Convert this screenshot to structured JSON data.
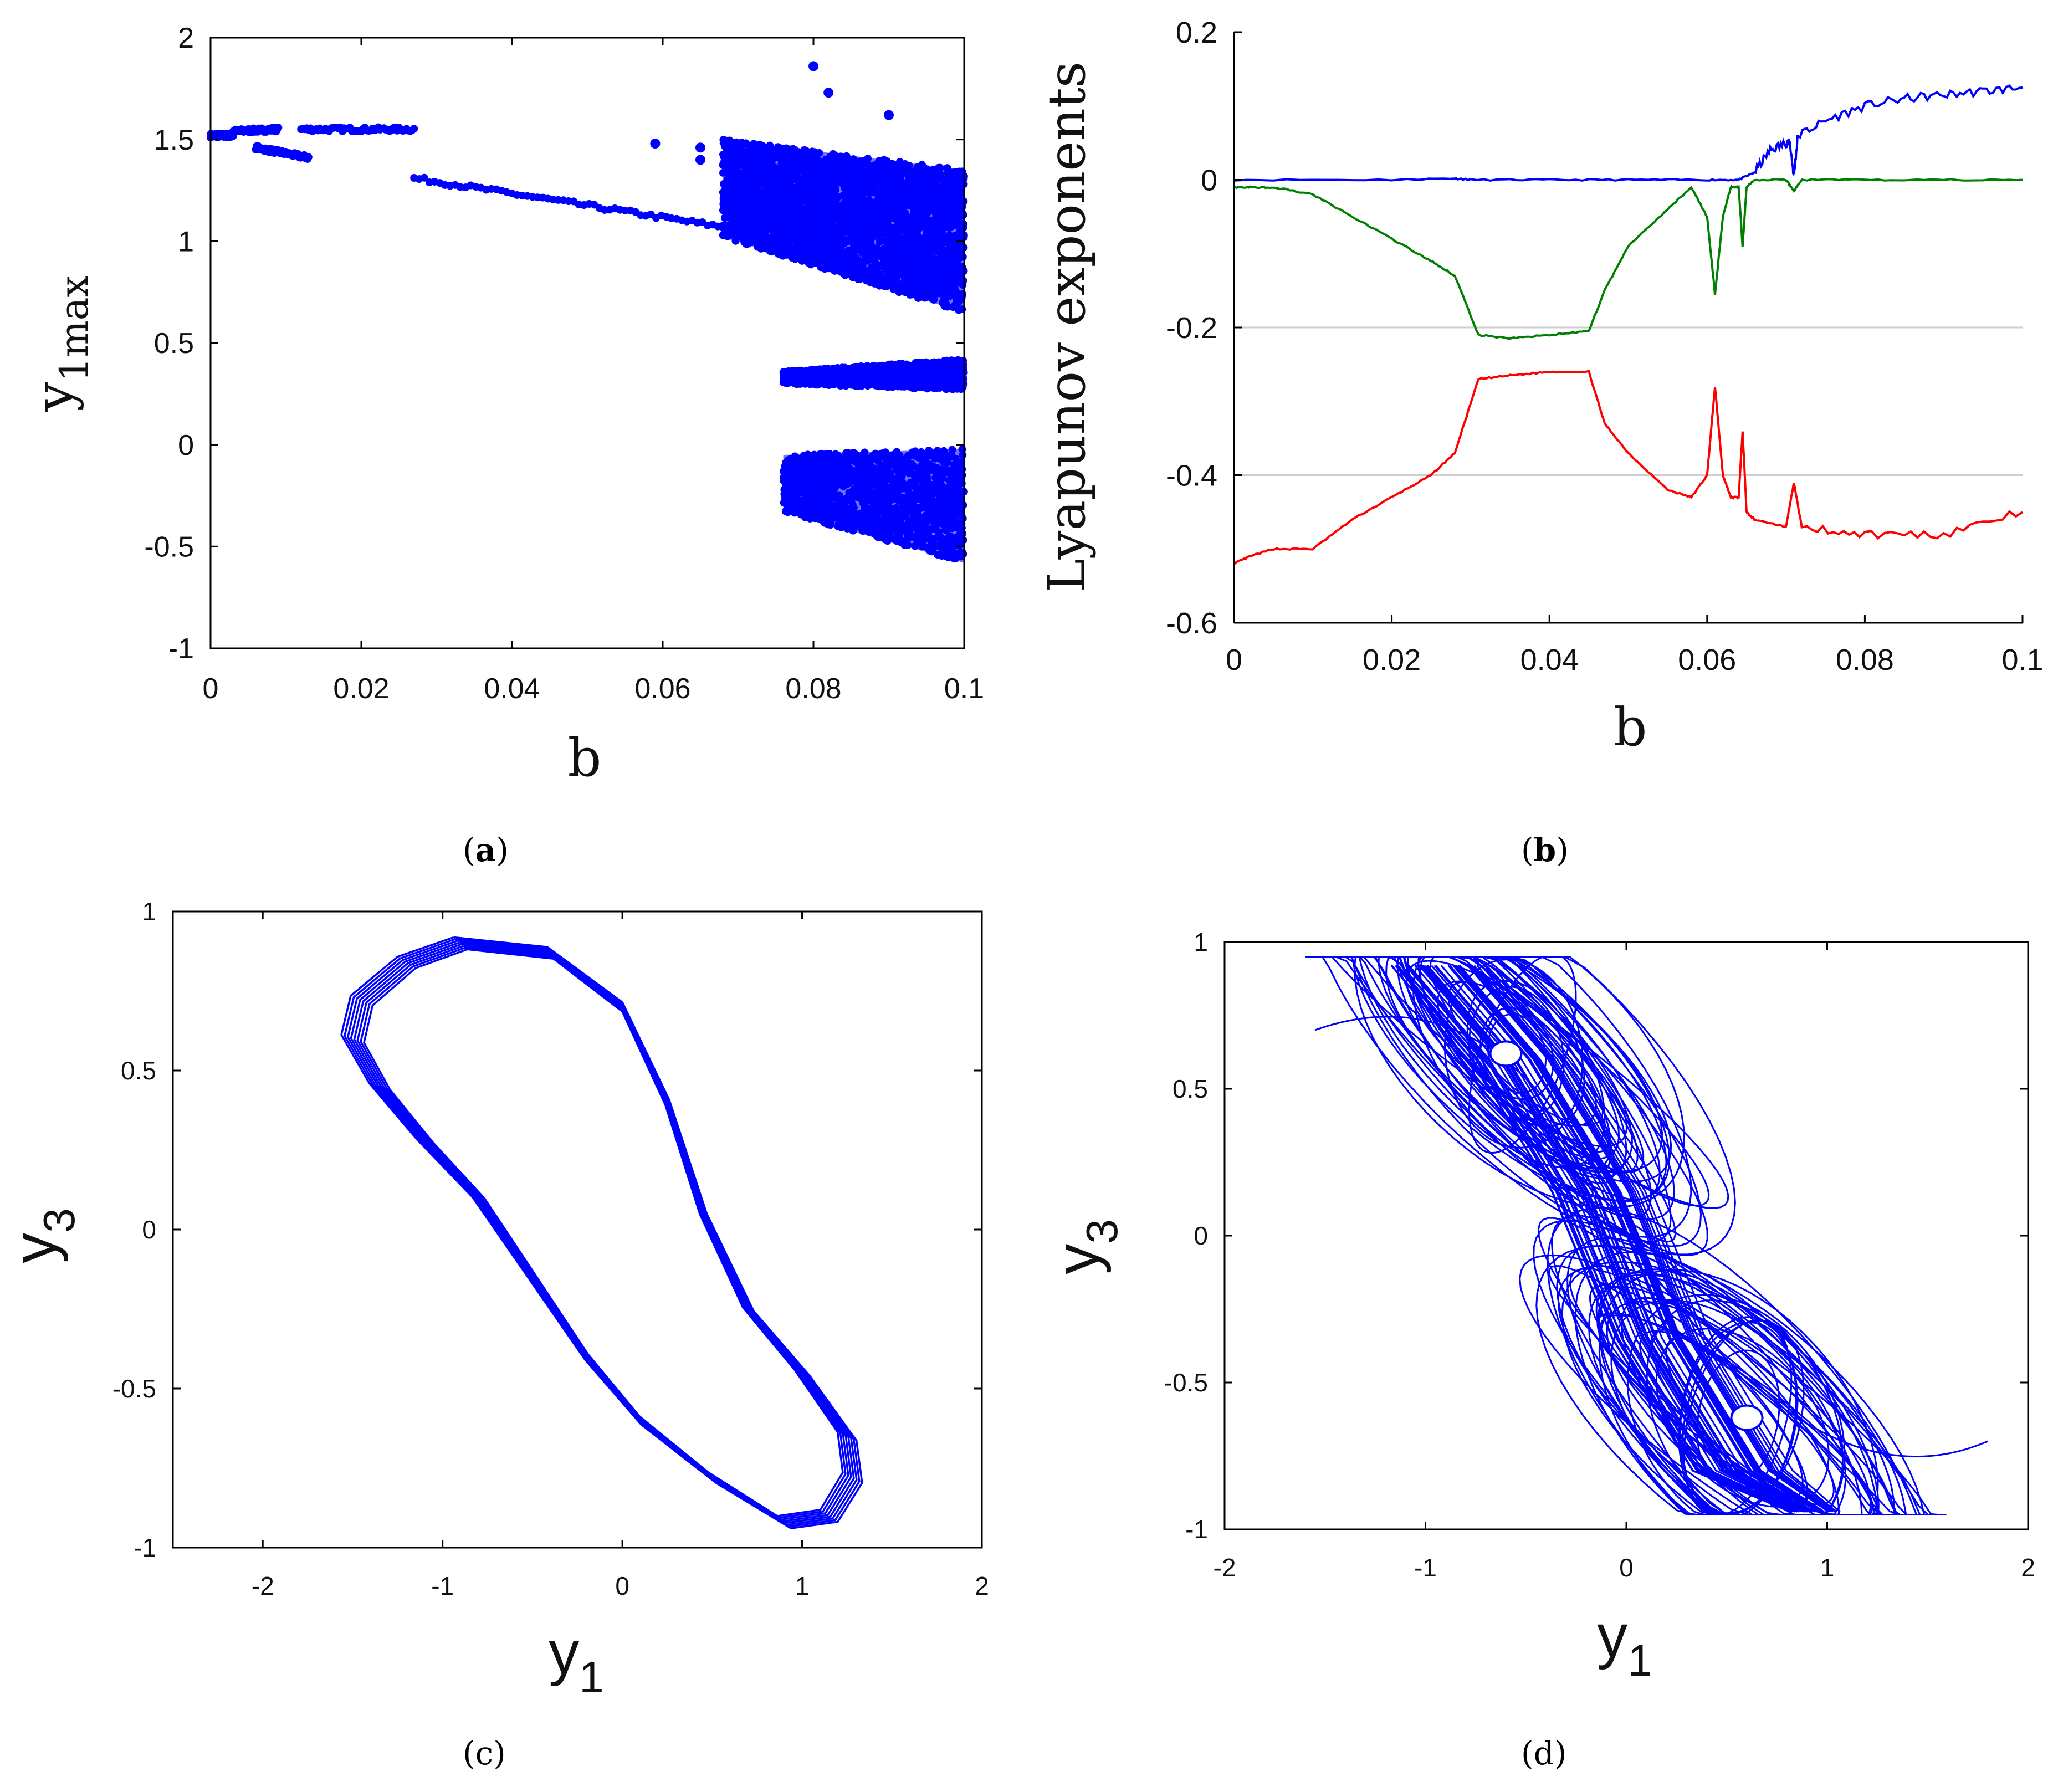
{
  "captions": {
    "a": {
      "open": "(",
      "letter": "a",
      "close": ")"
    },
    "b": {
      "open": "(",
      "letter": "b",
      "close": ")"
    },
    "c": {
      "open": "(",
      "letter": "c",
      "close": ")"
    },
    "d": {
      "open": "(",
      "letter": "d",
      "close": ")"
    }
  },
  "chart_data": [
    {
      "id": "a",
      "type": "scatter",
      "xlabel": "b",
      "ylabel": "y",
      "ylabel_sub": "1max",
      "xlim": [
        0,
        0.1
      ],
      "ylim": [
        -1,
        2
      ],
      "xticks": [
        "0",
        "0.02",
        "0.04",
        "0.06",
        "0.08",
        "0.1"
      ],
      "yticks": [
        "-1",
        "-0.5",
        "0",
        "0.5",
        "1",
        "1.5",
        "2"
      ],
      "color": "#0000ff",
      "segments": [
        {
          "x": [
            0.0,
            0.003
          ],
          "y": [
            1.52,
            1.52
          ]
        },
        {
          "x": [
            0.003,
            0.009
          ],
          "y": [
            1.54,
            1.55
          ]
        },
        {
          "x": [
            0.006,
            0.013
          ],
          "y": [
            1.46,
            1.41
          ]
        },
        {
          "x": [
            0.012,
            0.027
          ],
          "y": [
            1.55,
            1.55
          ]
        },
        {
          "x": [
            0.027,
            0.068
          ],
          "y": [
            1.31,
            1.07
          ]
        }
      ],
      "isolated_points": [
        {
          "x": 0.059,
          "y": 1.48
        },
        {
          "x": 0.065,
          "y": 1.46
        },
        {
          "x": 0.065,
          "y": 1.4
        },
        {
          "x": 0.08,
          "y": 1.86
        },
        {
          "x": 0.082,
          "y": 1.73
        },
        {
          "x": 0.09,
          "y": 1.62
        }
      ],
      "chaotic_bands": [
        {
          "x_from": 0.068,
          "x_to": 0.1,
          "y_top_from": 1.5,
          "y_top_to": 1.35,
          "y_bottom_from": 1.02,
          "y_bottom_to": 0.65
        },
        {
          "x_from": 0.076,
          "x_to": 0.1,
          "y_top_from": 0.36,
          "y_top_to": 0.42,
          "y_bottom_from": 0.3,
          "y_bottom_to": 0.27
        },
        {
          "x_from": 0.076,
          "x_to": 0.1,
          "y_top_from": -0.05,
          "y_top_to": -0.02,
          "y_bottom_from": -0.33,
          "y_bottom_to": -0.58
        }
      ]
    },
    {
      "id": "b",
      "type": "line",
      "xlabel": "b",
      "ylabel": "Lyapunov exponents",
      "xlim": [
        0,
        0.1
      ],
      "ylim": [
        -0.6,
        0.2
      ],
      "xticks": [
        "0",
        "0.02",
        "0.04",
        "0.06",
        "0.08",
        "0.1"
      ],
      "yticks": [
        "-0.6",
        "-0.4",
        "-0.2",
        "0",
        "0.2"
      ],
      "gridlines_y": [
        -0.2,
        -0.4
      ],
      "series": [
        {
          "color": "#0000ff",
          "x": [
            0,
            0.02,
            0.028,
            0.03,
            0.04,
            0.05,
            0.06,
            0.064,
            0.066,
            0.068,
            0.07,
            0.0705,
            0.071,
            0.0715,
            0.075,
            0.08,
            0.085,
            0.09,
            0.095,
            0.1
          ],
          "y": [
            0.0,
            0.0,
            0.002,
            0.0,
            0.0,
            0.0,
            0.0,
            0.0,
            0.01,
            0.04,
            0.05,
            0.05,
            0.005,
            0.06,
            0.08,
            0.1,
            0.11,
            0.115,
            0.12,
            0.125
          ]
        },
        {
          "color": "#008000",
          "x": [
            0,
            0.002,
            0.005,
            0.01,
            0.015,
            0.02,
            0.025,
            0.028,
            0.031,
            0.035,
            0.04,
            0.045,
            0.047,
            0.05,
            0.055,
            0.058,
            0.06,
            0.061,
            0.062,
            0.063,
            0.064,
            0.0645,
            0.065,
            0.066,
            0.07,
            0.071,
            0.072,
            0.08,
            0.09,
            0.1
          ],
          "y": [
            -0.01,
            -0.01,
            -0.01,
            -0.02,
            -0.05,
            -0.08,
            -0.11,
            -0.13,
            -0.21,
            -0.215,
            -0.21,
            -0.205,
            -0.15,
            -0.09,
            -0.04,
            -0.01,
            -0.05,
            -0.155,
            -0.05,
            -0.01,
            -0.01,
            -0.09,
            -0.01,
            0.0,
            0.0,
            -0.015,
            0.0,
            0.0,
            0.0,
            0.0
          ]
        },
        {
          "color": "#ff0000",
          "x": [
            0,
            0.002,
            0.005,
            0.01,
            0.015,
            0.02,
            0.025,
            0.028,
            0.031,
            0.035,
            0.04,
            0.045,
            0.047,
            0.05,
            0.055,
            0.058,
            0.06,
            0.061,
            0.062,
            0.063,
            0.064,
            0.0645,
            0.065,
            0.066,
            0.07,
            0.071,
            0.072,
            0.08,
            0.09,
            0.1
          ],
          "y": [
            -0.52,
            -0.51,
            -0.5,
            -0.5,
            -0.46,
            -0.43,
            -0.4,
            -0.37,
            -0.27,
            -0.265,
            -0.26,
            -0.26,
            -0.33,
            -0.37,
            -0.42,
            -0.43,
            -0.4,
            -0.28,
            -0.4,
            -0.43,
            -0.43,
            -0.34,
            -0.45,
            -0.46,
            -0.47,
            -0.41,
            -0.47,
            -0.48,
            -0.48,
            -0.45
          ]
        }
      ]
    },
    {
      "id": "c",
      "type": "line",
      "xlabel": "y",
      "xlabel_sub": "1",
      "ylabel": "y",
      "ylabel_sub": "3",
      "xlim": [
        -2.5,
        2
      ],
      "ylim": [
        -1,
        1
      ],
      "xticks": [
        "-2",
        "-1",
        "0",
        "1",
        "2"
      ],
      "yticks": [
        "-1",
        "-0.5",
        "0",
        "0.5",
        "1"
      ],
      "color": "#0000ff",
      "attractor": {
        "kind": "limit-cycle",
        "x_range": [
          -1.5,
          1.3
        ],
        "y_range": [
          -0.93,
          0.91
        ]
      }
    },
    {
      "id": "d",
      "type": "line",
      "xlabel": "y",
      "xlabel_sub": "1",
      "ylabel": "y",
      "ylabel_sub": "3",
      "xlim": [
        -2,
        2
      ],
      "ylim": [
        -1,
        1
      ],
      "xticks": [
        "-2",
        "-1",
        "0",
        "1",
        "2"
      ],
      "yticks": [
        "-1",
        "-0.5",
        "0",
        "0.5",
        "1"
      ],
      "color": "#0000ff",
      "attractor": {
        "kind": "double-scroll",
        "x_range": [
          -1.6,
          1.8
        ],
        "y_range": [
          -0.95,
          0.95
        ],
        "foci": [
          {
            "x": -0.6,
            "y": 0.62
          },
          {
            "x": 0.6,
            "y": -0.62
          }
        ]
      }
    }
  ]
}
